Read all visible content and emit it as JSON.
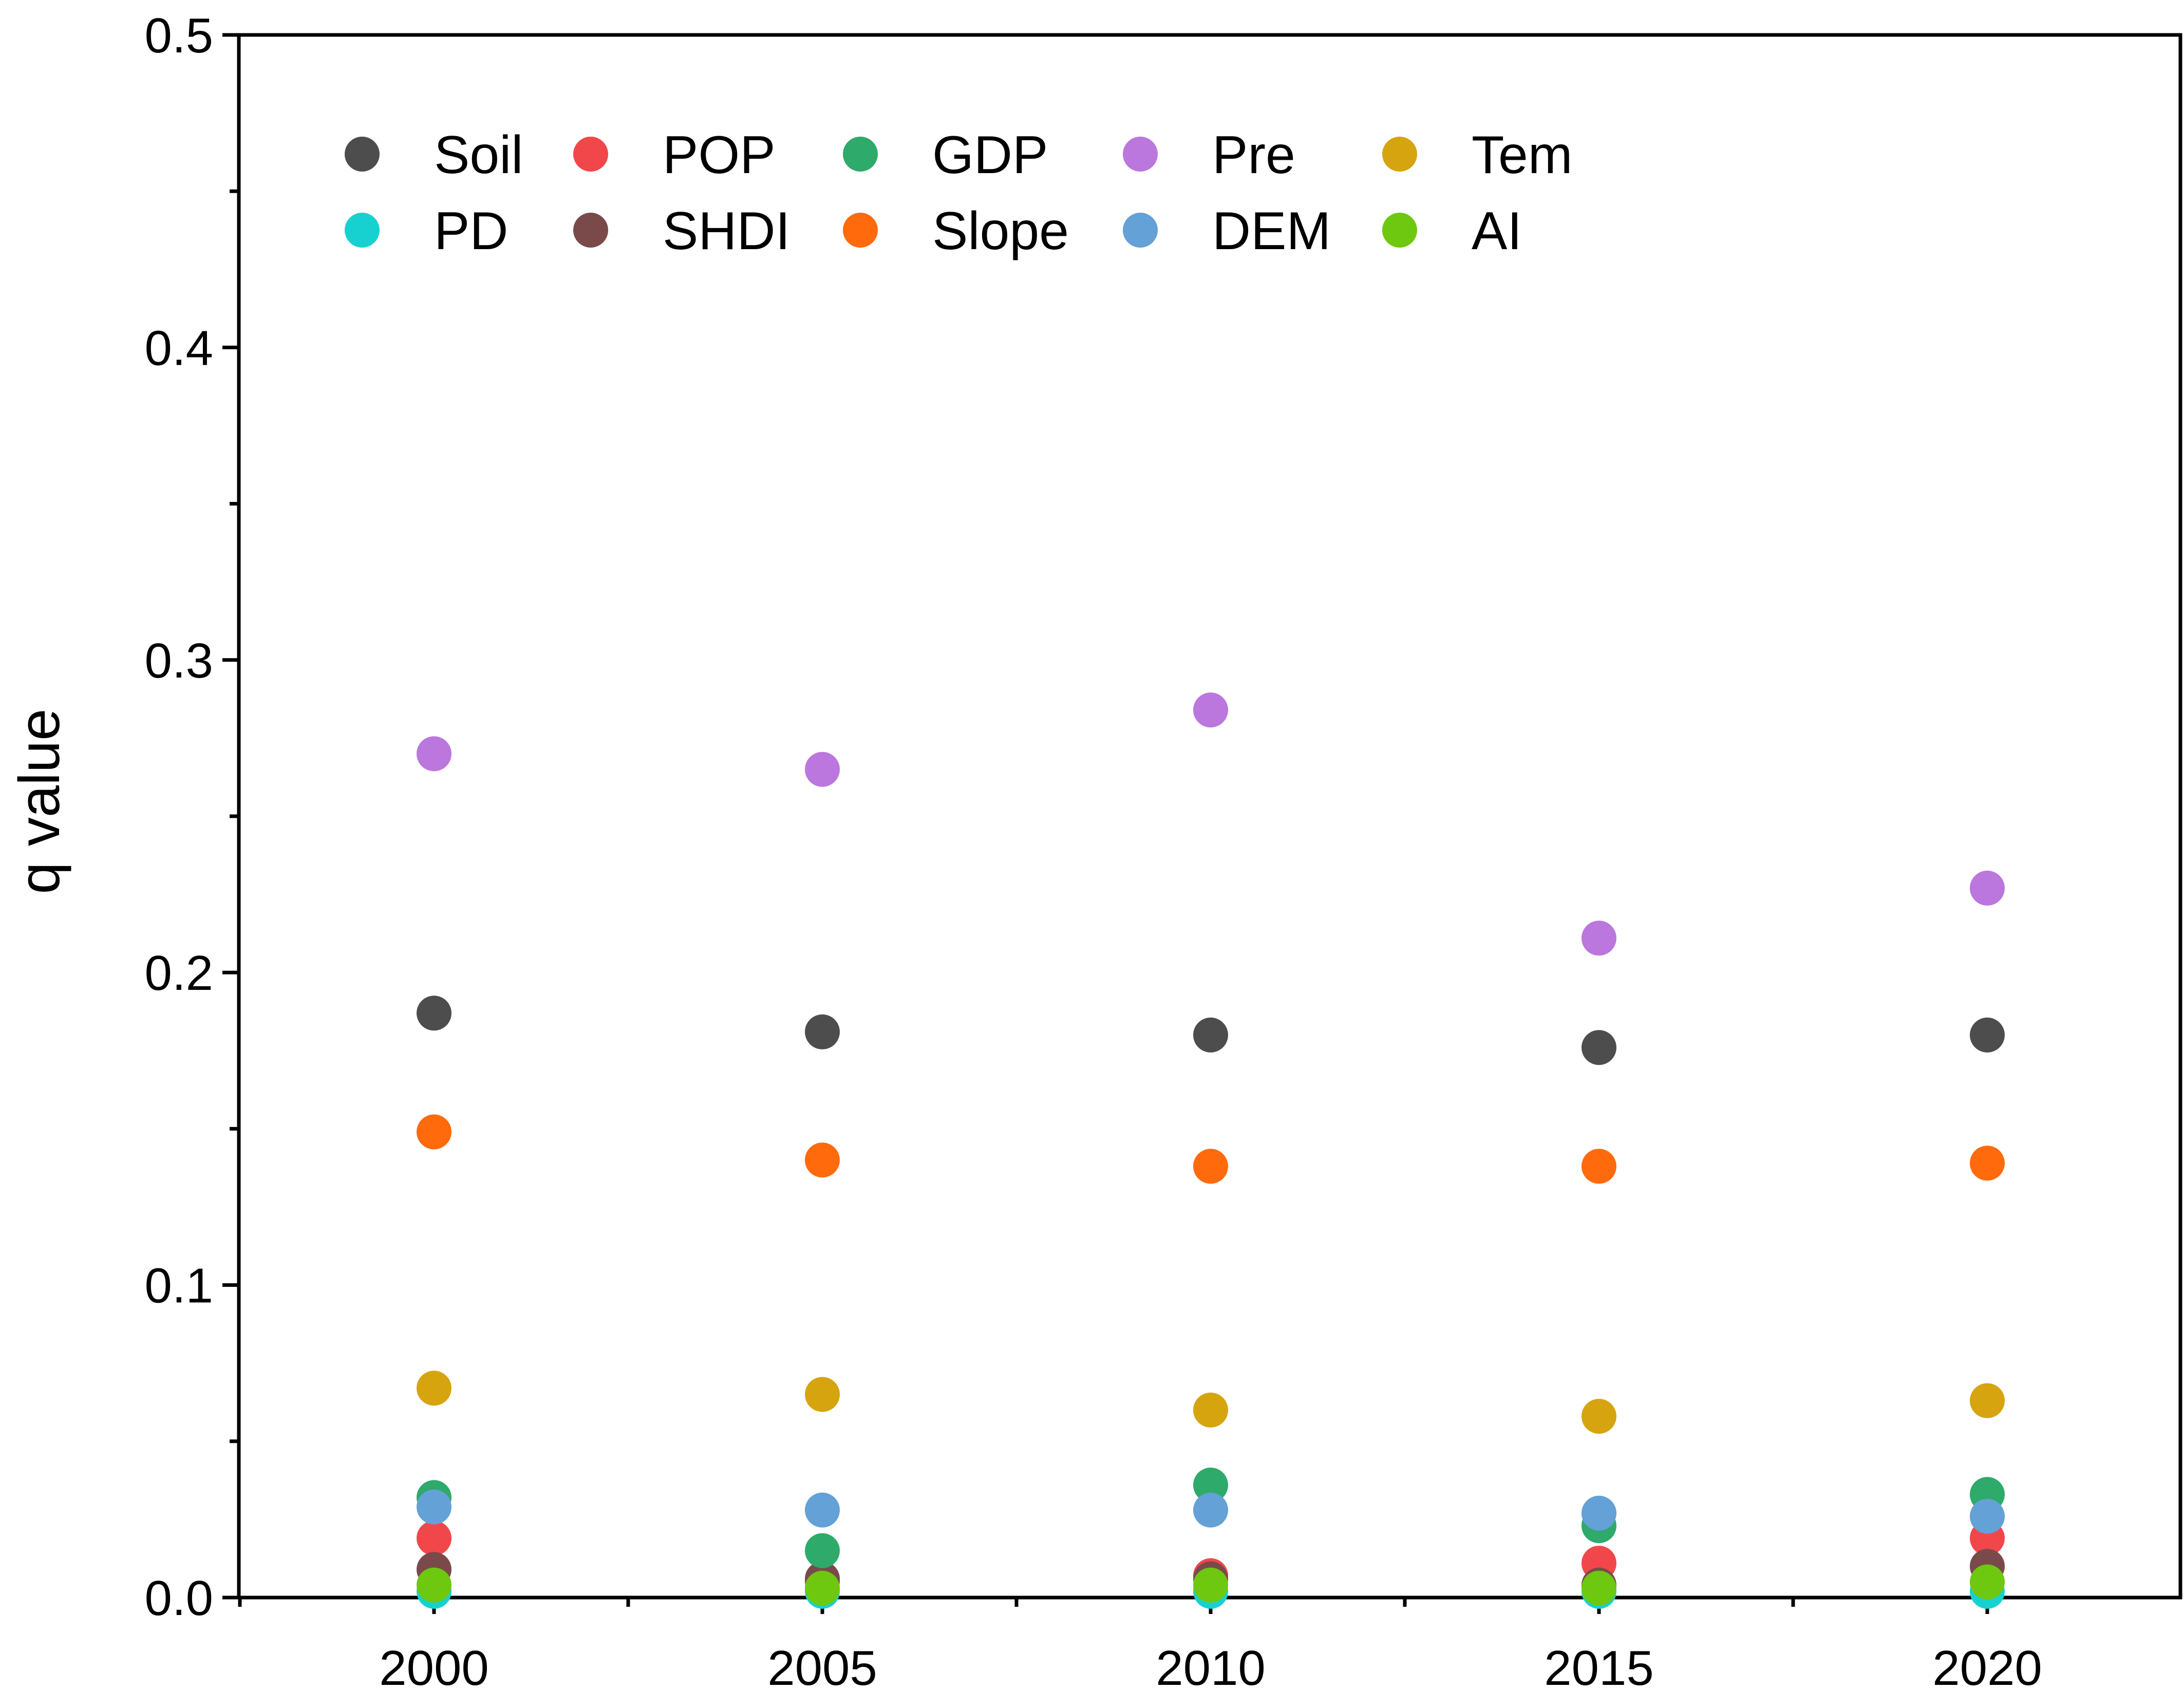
{
  "chart_data": {
    "type": "scatter",
    "title": "",
    "xlabel": "",
    "ylabel": "q value",
    "ylim": [
      0,
      0.5
    ],
    "yticks": [
      "0.0",
      "0.1",
      "0.2",
      "0.3",
      "0.4",
      "0.5"
    ],
    "y_minor_step": 0.05,
    "x_minor_between": true,
    "categories": [
      "2000",
      "2005",
      "2010",
      "2015",
      "2020"
    ],
    "legend_position": "top-left",
    "legend_columns": 5,
    "series": [
      {
        "name": "Soil",
        "color": "#4d4d4d",
        "values": [
          0.187,
          0.181,
          0.18,
          0.176,
          0.18
        ]
      },
      {
        "name": "PD",
        "color": "#17d1d1",
        "values": [
          0.002,
          0.002,
          0.002,
          0.002,
          0.002
        ]
      },
      {
        "name": "POP",
        "color": "#f2474a",
        "values": [
          0.019,
          0.005,
          0.007,
          0.011,
          0.019
        ]
      },
      {
        "name": "SHDI",
        "color": "#7a4a4a",
        "values": [
          0.009,
          0.006,
          0.006,
          0.004,
          0.01
        ]
      },
      {
        "name": "GDP",
        "color": "#2eaa6a",
        "values": [
          0.032,
          0.015,
          0.036,
          0.023,
          0.033
        ]
      },
      {
        "name": "Slope",
        "color": "#ff6a0d",
        "values": [
          0.149,
          0.14,
          0.138,
          0.138,
          0.139
        ]
      },
      {
        "name": "Pre",
        "color": "#bb77dd",
        "values": [
          0.27,
          0.265,
          0.284,
          0.211,
          0.227
        ]
      },
      {
        "name": "DEM",
        "color": "#63a1d6",
        "values": [
          0.029,
          0.028,
          0.028,
          0.027,
          0.026
        ]
      },
      {
        "name": "Tem",
        "color": "#d6a40f",
        "values": [
          0.067,
          0.065,
          0.06,
          0.058,
          0.063
        ]
      },
      {
        "name": "AI",
        "color": "#6dc80f",
        "values": [
          0.004,
          0.003,
          0.004,
          0.003,
          0.005
        ]
      }
    ]
  }
}
